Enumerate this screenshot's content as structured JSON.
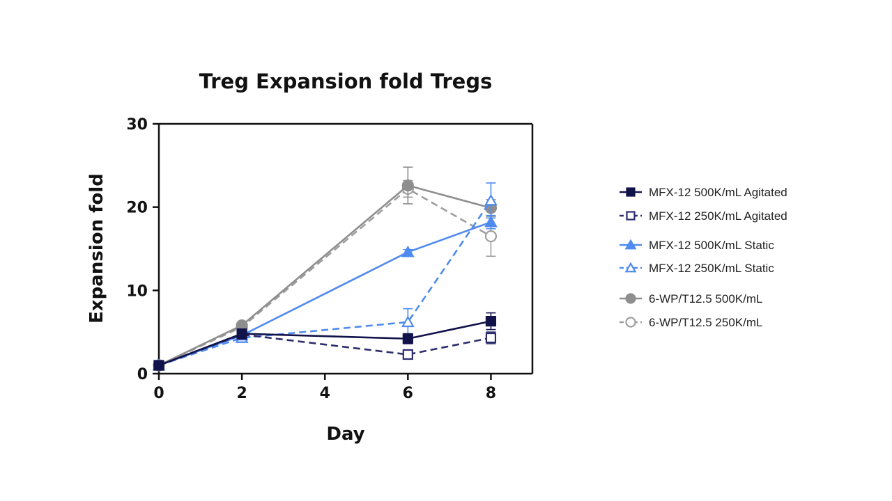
{
  "chart_data": {
    "type": "line",
    "title": "Treg Expansion fold Tregs",
    "xlabel": "Day",
    "ylabel": "Expansion fold",
    "xlim": [
      0,
      9
    ],
    "ylim": [
      0,
      30
    ],
    "xticks": [
      0,
      2,
      4,
      6,
      8
    ],
    "yticks": [
      0,
      10,
      20,
      30
    ],
    "x": [
      0,
      2,
      6,
      8
    ],
    "grid": false,
    "legend_position": "right",
    "series": [
      {
        "name": "MFX-12 500K/mL Agitated",
        "color": "#12124a",
        "marker": "square",
        "filled": true,
        "dashed": false,
        "values": [
          1.0,
          4.8,
          4.2,
          6.3
        ],
        "errors": [
          0,
          0.3,
          0.6,
          1.0
        ]
      },
      {
        "name": "MFX-12 250K/mL Agitated",
        "color": "#2c2c6e",
        "marker": "square",
        "filled": false,
        "dashed": true,
        "values": [
          1.0,
          4.7,
          2.3,
          4.3
        ],
        "errors": [
          0,
          0.3,
          0.5,
          0.7
        ]
      },
      {
        "name": "MFX-12 500K/mL Static",
        "color": "#4f8bef",
        "marker": "triangle",
        "filled": true,
        "dashed": false,
        "values": [
          1.0,
          4.6,
          14.6,
          18.2
        ],
        "errors": [
          0,
          0.3,
          0.3,
          0.8
        ]
      },
      {
        "name": "MFX-12 250K/mL Static",
        "color": "#4f8bef",
        "marker": "triangle",
        "filled": false,
        "dashed": true,
        "values": [
          1.0,
          4.3,
          6.2,
          20.8
        ],
        "errors": [
          0,
          0.3,
          1.6,
          2.1
        ]
      },
      {
        "name": "6-WP/T12.5 500K/mL",
        "color": "#8e8e8e",
        "marker": "circle",
        "filled": true,
        "dashed": false,
        "values": [
          1.0,
          5.8,
          22.6,
          19.9
        ],
        "errors": [
          0,
          0.3,
          2.2,
          1.0
        ]
      },
      {
        "name": "6-WP/T12.5 250K/mL",
        "color": "#9e9e9e",
        "marker": "circle",
        "filled": false,
        "dashed": true,
        "values": [
          1.0,
          5.6,
          22.2,
          16.5
        ],
        "errors": [
          0,
          0.3,
          1.0,
          2.4
        ]
      }
    ]
  }
}
